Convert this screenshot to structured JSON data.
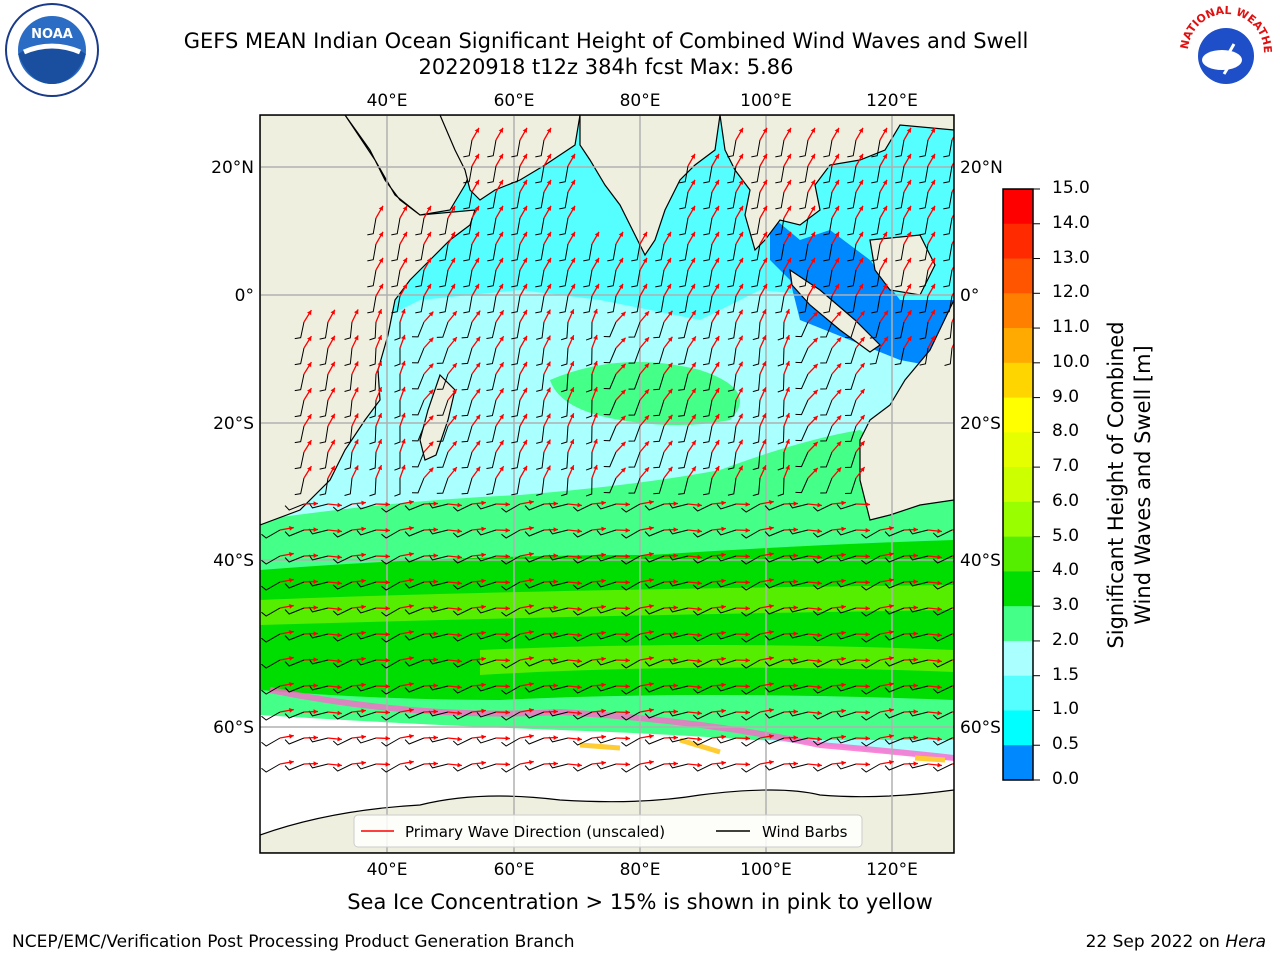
{
  "header": {
    "title_line1": "GEFS MEAN Indian Ocean Significant Height of Combined Wind Waves and Swell",
    "title_line2": "20220918 t12z 384h fcst   Max: 5.86"
  },
  "logos": {
    "left_icon": "noaa-logo-icon",
    "right_icon": "national-weather-service-logo-icon",
    "noaa_text": "NOAA",
    "nws_text": "NATIONAL WEATHER SERVICE"
  },
  "map": {
    "lon_labels": [
      "40°E",
      "60°E",
      "80°E",
      "100°E",
      "120°E"
    ],
    "lat_labels": [
      "20°N",
      "0°",
      "20°S",
      "40°S",
      "60°S"
    ],
    "lon_range": [
      20,
      130
    ],
    "lat_range": [
      -73,
      27
    ],
    "colors": {
      "land": "#efefdf",
      "sea_ice": "#ffffff",
      "arrows": "#ff0000",
      "barbs": "#000000"
    }
  },
  "legend": {
    "wave_direction_label": "Primary Wave Direction (unscaled)",
    "wind_barbs_label": "Wind Barbs"
  },
  "colorbar": {
    "label_line1": "Significant Height of Combined",
    "label_line2": "Wind Waves and Swell [m]",
    "ticks": [
      "15.0",
      "14.0",
      "13.0",
      "12.0",
      "11.0",
      "10.0",
      "9.0",
      "8.0",
      "7.0",
      "6.0",
      "5.0",
      "4.0",
      "3.0",
      "2.0",
      "1.5",
      "1.0",
      "0.5",
      "0.0"
    ],
    "colors": [
      "#ff0000",
      "#ff2a00",
      "#ff5500",
      "#ff8000",
      "#ffaa00",
      "#ffd500",
      "#ffff00",
      "#e6ff00",
      "#ccff00",
      "#99ff00",
      "#55ee00",
      "#00dd00",
      "#44ff88",
      "#aaffff",
      "#55ffff",
      "#00ffff",
      "#0088ff",
      "#0000ff"
    ]
  },
  "footer": {
    "sea_ice_note": "Sea Ice Concentration > 15% is shown in pink to yellow",
    "producer": "NCEP/EMC/Verification Post Processing Product Generation Branch",
    "date": "22 Sep 2022 on",
    "machine": "Hera"
  }
}
